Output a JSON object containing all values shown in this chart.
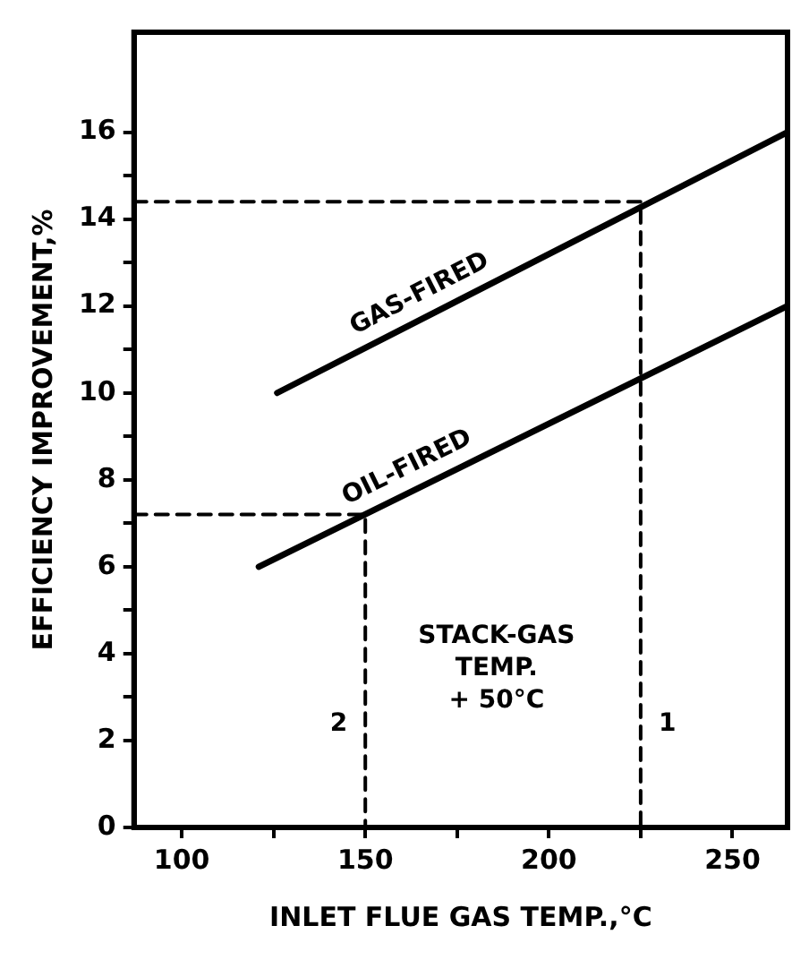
{
  "chart_data": {
    "type": "line",
    "xlabel": "INLET FLUE GAS TEMP.,°C",
    "ylabel": "EFFICIENCY IMPROVEMENT,%",
    "xlim": [
      87,
      265
    ],
    "ylim": [
      0,
      18.3
    ],
    "xticks": [
      100,
      {
        "value": 125,
        "label": null
      },
      150,
      {
        "value": 175,
        "label": null
      },
      200,
      {
        "value": 225,
        "label": null
      },
      250
    ],
    "yticks": [
      0,
      2,
      {
        "value": 3,
        "label": null
      },
      4,
      {
        "value": 5,
        "label": null
      },
      6,
      {
        "value": 7,
        "label": null
      },
      8,
      {
        "value": 9,
        "label": null
      },
      10,
      {
        "value": 11,
        "label": null
      },
      12,
      {
        "value": 13,
        "label": null
      },
      14,
      {
        "value": 15,
        "label": null
      },
      16
    ],
    "grid": false,
    "legend": false,
    "marker": "none",
    "series": [
      {
        "name": "GAS-FIRED",
        "color": "#000000",
        "x": [
          126,
          265
        ],
        "values": [
          10,
          16
        ]
      },
      {
        "name": "OIL-FIRED",
        "color": "#000000",
        "x": [
          121,
          265
        ],
        "values": [
          6,
          12
        ]
      },
      {
        "name": "1",
        "color": "#000000",
        "line_style": "dashed",
        "x": [
          87,
          225,
          225
        ],
        "values": [
          14.4,
          14.4,
          0
        ]
      },
      {
        "name": "2",
        "color": "#000000",
        "line_style": "dashed",
        "x": [
          87,
          150,
          150
        ],
        "values": [
          7.2,
          7.2,
          0
        ]
      }
    ],
    "annotations": [
      "STACK-GAS\nTEMP.\n+ 50°C"
    ]
  }
}
